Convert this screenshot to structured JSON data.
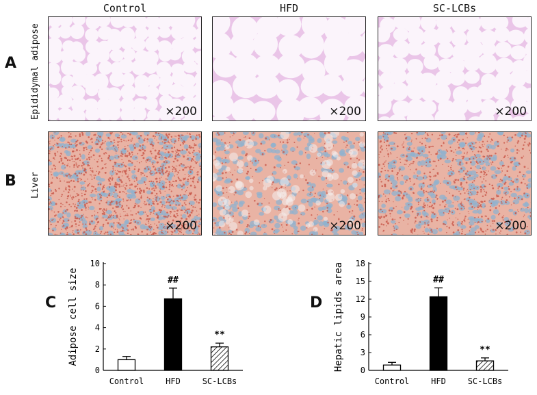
{
  "figure": {
    "columns": [
      "Control",
      "HFD",
      "SC-LCBs"
    ],
    "row_letters": [
      "A",
      "B"
    ],
    "rows": [
      "Epididymal adipose",
      "Liver"
    ],
    "magnification": "×200",
    "chart_letters": [
      "C",
      "D"
    ],
    "colors": {
      "adipose_bg": "#fbf4fb",
      "adipose_wall": "#d995d6",
      "liver_bg": "#e9b3a4",
      "liver_dot": "#c8584a",
      "nucleus": "#8fb1cf"
    }
  },
  "chart_data": [
    {
      "type": "bar",
      "categories": [
        "Control",
        "HFD",
        "SC-LCBs"
      ],
      "values": [
        1.0,
        6.7,
        2.2
      ],
      "errors": [
        0.3,
        1.0,
        0.35
      ],
      "significance": [
        "",
        "##",
        "**"
      ],
      "fills": [
        "white",
        "black",
        "hatched"
      ],
      "title": "",
      "xlabel": "",
      "ylabel": "Adipose cell size",
      "ylim": [
        0,
        10
      ],
      "yticks": [
        0,
        2,
        4,
        6,
        8,
        10
      ]
    },
    {
      "type": "bar",
      "categories": [
        "Control",
        "HFD",
        "SC-LCBs"
      ],
      "values": [
        0.9,
        12.4,
        1.6
      ],
      "errors": [
        0.45,
        1.5,
        0.5
      ],
      "significance": [
        "",
        "##",
        "**"
      ],
      "fills": [
        "white",
        "black",
        "hatched"
      ],
      "title": "",
      "xlabel": "",
      "ylabel": "Hepatic lipids area",
      "ylim": [
        0,
        18
      ],
      "yticks": [
        0,
        3,
        6,
        9,
        12,
        15,
        18
      ]
    }
  ]
}
